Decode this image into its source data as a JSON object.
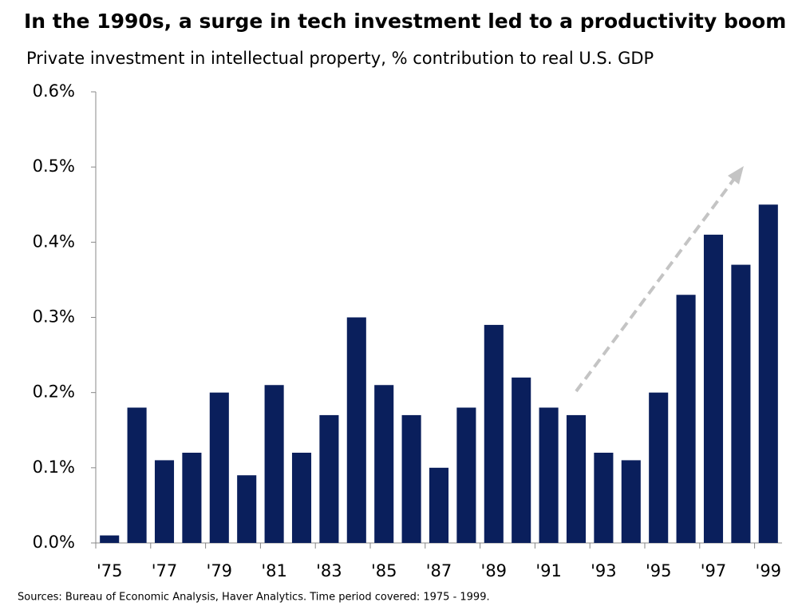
{
  "chart_data": {
    "type": "bar",
    "title": "In the 1990s, a surge in tech investment led to a productivity boom",
    "subtitle": "Private investment in intellectual property, % contribution to real U.S. GDP",
    "source": "Sources: Bureau of Economic Analysis, Haver Analytics. Time period covered: 1975 - 1999.",
    "categories": [
      "'75",
      null,
      "'77",
      null,
      "'79",
      null,
      "'81",
      null,
      "'83",
      null,
      "'85",
      null,
      "'87",
      null,
      "'89",
      null,
      "'91",
      null,
      "'93",
      null,
      "'95",
      null,
      "'97",
      null,
      "'99"
    ],
    "values": [
      0.01,
      0.18,
      0.11,
      0.12,
      0.2,
      0.09,
      0.21,
      0.12,
      0.17,
      0.3,
      0.21,
      0.17,
      0.1,
      0.18,
      0.29,
      0.22,
      0.18,
      0.17,
      0.12,
      0.11,
      0.2,
      0.33,
      0.41,
      0.37,
      0.45
    ],
    "color": "#0a1f5c",
    "ylim": [
      0,
      0.6
    ],
    "yticks": [
      {
        "value": 0,
        "label": "0.0%"
      },
      {
        "value": 0.1,
        "label": "0.1%"
      },
      {
        "value": 0.2,
        "label": "0.2%"
      },
      {
        "value": 0.3,
        "label": "0.3%"
      },
      {
        "value": 0.4,
        "label": "0.4%"
      },
      {
        "value": 0.5,
        "label": "0.5%"
      },
      {
        "value": 0.6,
        "label": "0.6%"
      }
    ],
    "grid": false
  }
}
